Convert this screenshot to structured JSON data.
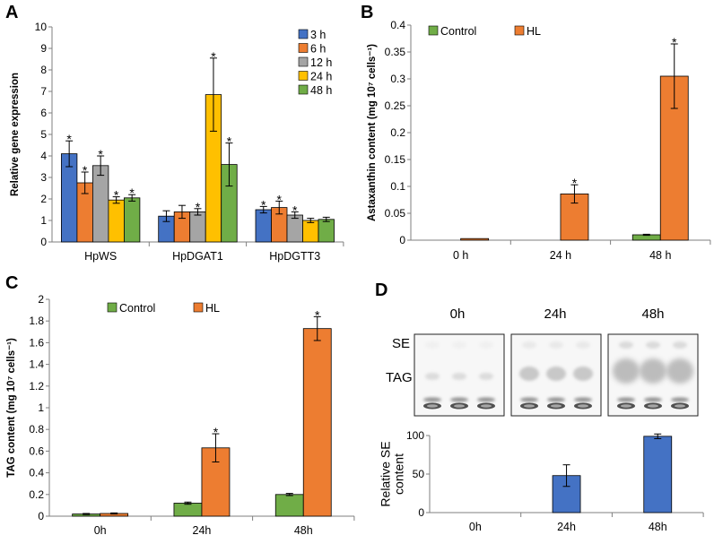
{
  "colors": {
    "blue": "#4472C4",
    "orange": "#ED7D31",
    "gray": "#A5A5A5",
    "yellow": "#FFC000",
    "green": "#70AD47",
    "axis": "#7f7f7f",
    "error": "#000000"
  },
  "chart_data": [
    {
      "panel": "A",
      "type": "bar",
      "ylabel": "Relative  gene expression",
      "ylim": [
        0,
        10
      ],
      "yticks": [
        "0",
        "1",
        "2",
        "3",
        "4",
        "5",
        "6",
        "7",
        "8",
        "9",
        "10"
      ],
      "categories": [
        "HpWS",
        "HpDGAT1",
        "HpDGTT3"
      ],
      "legend": [
        "3 h",
        "6 h",
        "12 h",
        "24 h",
        "48 h"
      ],
      "series": [
        {
          "name": "3 h",
          "color_key": "blue",
          "values": [
            4.1,
            1.2,
            1.5
          ],
          "errors": [
            0.6,
            0.25,
            0.15
          ],
          "significant": [
            true,
            false,
            true
          ]
        },
        {
          "name": "6 h",
          "color_key": "orange",
          "values": [
            2.75,
            1.4,
            1.6
          ],
          "errors": [
            0.5,
            0.3,
            0.3
          ],
          "significant": [
            true,
            false,
            true
          ]
        },
        {
          "name": "12 h",
          "color_key": "gray",
          "values": [
            3.55,
            1.4,
            1.25
          ],
          "errors": [
            0.45,
            0.15,
            0.15
          ],
          "significant": [
            true,
            true,
            true
          ]
        },
        {
          "name": "24 h",
          "color_key": "yellow",
          "values": [
            1.95,
            6.85,
            1.0
          ],
          "errors": [
            0.15,
            1.7,
            0.1
          ],
          "significant": [
            true,
            true,
            false
          ]
        },
        {
          "name": "48 h",
          "color_key": "green",
          "values": [
            2.05,
            3.6,
            1.05
          ],
          "errors": [
            0.15,
            1.0,
            0.1
          ],
          "significant": [
            true,
            true,
            false
          ]
        }
      ]
    },
    {
      "panel": "B",
      "type": "bar",
      "ylabel": "Astaxanthin content (mg 10⁷ cells⁻¹)",
      "ylim": [
        0,
        0.4
      ],
      "yticks": [
        "0",
        "0.05",
        "0.1",
        "0.15",
        "0.2",
        "0.25",
        "0.3",
        "0.35",
        "0.4"
      ],
      "categories": [
        "0 h",
        "24 h",
        "48 h"
      ],
      "legend": [
        "Control",
        "HL"
      ],
      "series": [
        {
          "name": "Control",
          "color_key": "green",
          "values": [
            0.0,
            0.0,
            0.01
          ],
          "errors": [
            0,
            0,
            0.001
          ],
          "significant": [
            false,
            false,
            false
          ]
        },
        {
          "name": "HL",
          "color_key": "orange",
          "values": [
            0.003,
            0.086,
            0.305
          ],
          "errors": [
            0,
            0.017,
            0.06
          ],
          "significant": [
            false,
            true,
            true
          ]
        }
      ]
    },
    {
      "panel": "C",
      "type": "bar",
      "ylabel": "TAG content (mg 10⁷ cells⁻¹)",
      "ylim": [
        0,
        2
      ],
      "yticks": [
        "0",
        "0.2",
        "0.4",
        "0.6",
        "0.8",
        "1",
        "1.2",
        "1.4",
        "1.6",
        "1.8",
        "2"
      ],
      "categories": [
        "0h",
        "24h",
        "48h"
      ],
      "legend": [
        "Control",
        "HL"
      ],
      "series": [
        {
          "name": "Control",
          "color_key": "green",
          "values": [
            0.02,
            0.12,
            0.2
          ],
          "errors": [
            0.005,
            0.01,
            0.01
          ],
          "significant": [
            false,
            false,
            false
          ]
        },
        {
          "name": "HL",
          "color_key": "orange",
          "values": [
            0.025,
            0.63,
            1.73
          ],
          "errors": [
            0.005,
            0.13,
            0.11
          ],
          "significant": [
            false,
            true,
            true
          ]
        }
      ]
    },
    {
      "panel": "D",
      "type": "bar",
      "ylabel": "Relative SE content",
      "ylim": [
        0,
        100
      ],
      "yticks": [
        "0",
        "50",
        "100"
      ],
      "categories": [
        "0h",
        "24h",
        "48h"
      ],
      "series": [
        {
          "name": "Relative SE",
          "color_key": "blue",
          "values": [
            0,
            48,
            99
          ],
          "errors": [
            0,
            14,
            3
          ]
        }
      ]
    }
  ],
  "panels": {
    "a": "A",
    "b": "B",
    "c": "C",
    "d": "D"
  },
  "star": "*",
  "tlc": {
    "times": [
      "0h",
      "24h",
      "48h"
    ],
    "labels": {
      "se": "SE",
      "tag": "TAG"
    }
  }
}
